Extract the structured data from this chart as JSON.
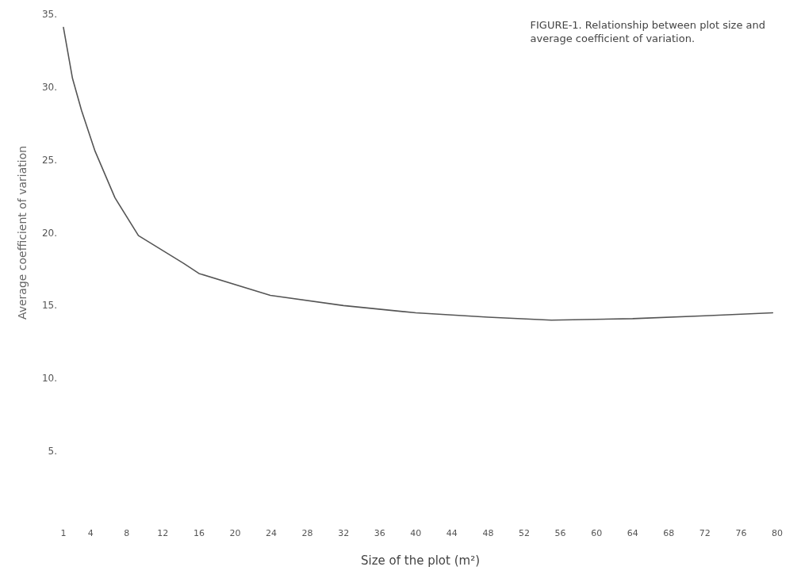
{
  "chart_data": {
    "type": "line",
    "title": "FIGURE-1. Relationship between plot size and\naverage coefficient of variation.",
    "xlabel": "Size of the plot (m²)",
    "ylabel": "Average coefficient of variation",
    "x": [
      1,
      2,
      3,
      4.5,
      6.7,
      9.3,
      14.3,
      16,
      23.9,
      32,
      40,
      48,
      55,
      64,
      72,
      79.5
    ],
    "series": [
      {
        "color": "#555555",
        "values": [
          34.1,
          30.6,
          28.4,
          25.6,
          22.4,
          19.8,
          17.9,
          17.2,
          15.7,
          15.0,
          14.5,
          14.2,
          14.0,
          14.1,
          14.3,
          14.5
        ]
      }
    ],
    "xlim": [
      1,
      80
    ],
    "xticks": [
      1,
      4,
      8,
      12,
      16,
      20,
      24,
      28,
      32,
      36,
      40,
      44,
      48,
      52,
      56,
      60,
      64,
      68,
      72,
      76,
      80
    ],
    "ylim": [
      5,
      35
    ],
    "yticks": [
      {
        "value": 5,
        "label": "5."
      },
      {
        "value": 10,
        "label": "10."
      },
      {
        "value": 15,
        "label": "15."
      },
      {
        "value": 20,
        "label": "20."
      },
      {
        "value": 25,
        "label": "25."
      },
      {
        "value": 30,
        "label": "30."
      },
      {
        "value": 35,
        "label": "35."
      }
    ],
    "grid": false,
    "marker": "none",
    "line_style": "solid"
  }
}
